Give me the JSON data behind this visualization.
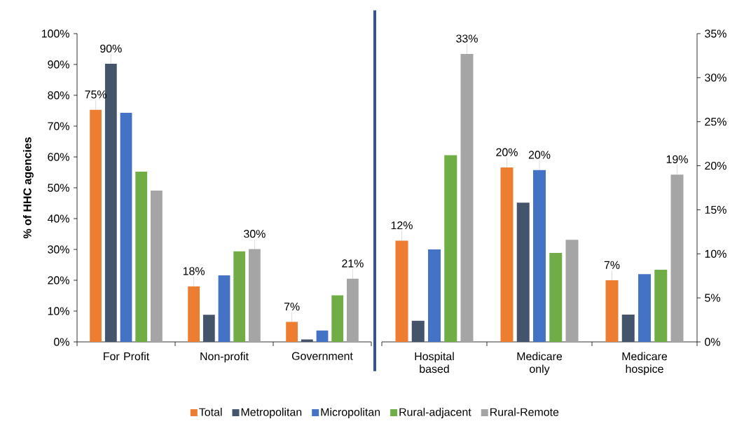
{
  "chart_data": [
    {
      "type": "bar",
      "ylabel": "% of HHC agencies",
      "categories": [
        "For Profit",
        "Non-profit",
        "Government"
      ],
      "ylim": [
        0,
        100
      ],
      "yticks": [
        {
          "value": 0,
          "label": "0%"
        },
        {
          "value": 10,
          "label": "10%"
        },
        {
          "value": 20,
          "label": "20%"
        },
        {
          "value": 30,
          "label": "30%"
        },
        {
          "value": 40,
          "label": "40%"
        },
        {
          "value": 50,
          "label": "50%"
        },
        {
          "value": 60,
          "label": "60%"
        },
        {
          "value": 70,
          "label": "70%"
        },
        {
          "value": 80,
          "label": "80%"
        },
        {
          "value": 90,
          "label": "90%"
        },
        {
          "value": 100,
          "label": "100%"
        }
      ],
      "legend": "bottom",
      "series": [
        {
          "name": "Total",
          "color": "#ed7d31",
          "values": [
            75.3,
            18.0,
            6.5
          ],
          "value_labels": [
            "75%",
            "18%",
            "7%"
          ]
        },
        {
          "name": "Metropolitan",
          "color": "#44546a",
          "values": [
            90.2,
            8.8,
            0.8
          ],
          "value_labels": [
            "90%",
            null,
            null
          ]
        },
        {
          "name": "Micropolitan",
          "color": "#4472c4",
          "values": [
            74.3,
            21.6,
            3.7
          ]
        },
        {
          "name": "Rural-adjacent",
          "color": "#70ad47",
          "values": [
            55.2,
            29.4,
            15.1
          ]
        },
        {
          "name": "Rural-Remote",
          "color": "#a5a5a5",
          "values": [
            49.1,
            30.1,
            20.5
          ],
          "value_labels": [
            null,
            "30%",
            "21%"
          ]
        }
      ]
    },
    {
      "type": "bar",
      "categories": [
        "Hospital based",
        "Medicare only",
        "Medicare hospice"
      ],
      "y2lim": [
        0,
        35
      ],
      "y2ticks": [
        {
          "value": 0,
          "label": "0%"
        },
        {
          "value": 5,
          "label": "5%"
        },
        {
          "value": 10,
          "label": "10%"
        },
        {
          "value": 15,
          "label": "15%"
        },
        {
          "value": 20,
          "label": "20%"
        },
        {
          "value": 25,
          "label": "25%"
        },
        {
          "value": 30,
          "label": "30%"
        },
        {
          "value": 35,
          "label": "35%"
        }
      ],
      "series": [
        {
          "color": "#ed7d31",
          "axis": "y2",
          "values": [
            11.5,
            19.8,
            7.0
          ],
          "value_labels": [
            "12%",
            "20%",
            "7%"
          ]
        },
        {
          "color": "#44546a",
          "axis": "y2",
          "values": [
            2.4,
            15.8,
            3.1
          ]
        },
        {
          "color": "#4472c4",
          "axis": "y2",
          "values": [
            10.5,
            19.5,
            7.7
          ],
          "value_labels": [
            null,
            "20%",
            null
          ]
        },
        {
          "color": "#70ad47",
          "axis": "y2",
          "values": [
            21.2,
            10.1,
            8.2
          ]
        },
        {
          "color": "#a5a5a5",
          "axis": "y2",
          "values": [
            32.7,
            11.6,
            19.0
          ],
          "value_labels": [
            "33%",
            null,
            "19%"
          ]
        }
      ]
    }
  ]
}
